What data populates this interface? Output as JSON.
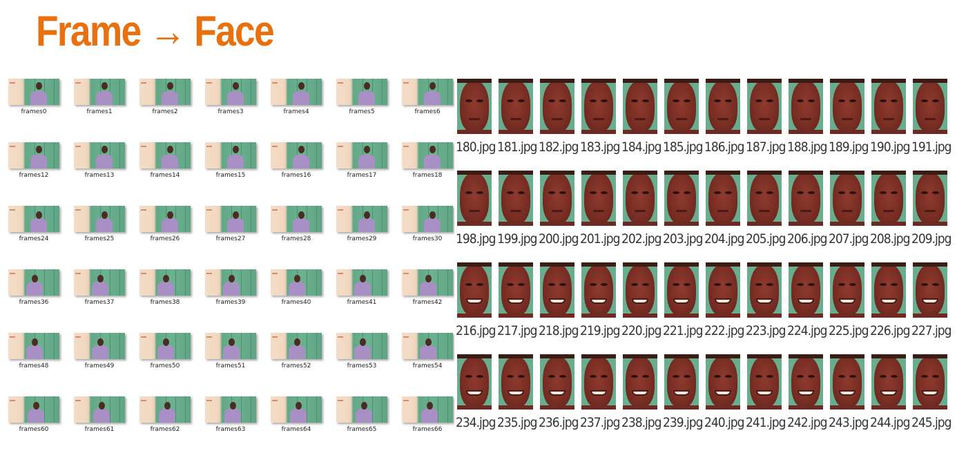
{
  "title": "Frame → Face",
  "colors": {
    "title": "#e8700e"
  },
  "frames": [
    [
      "frames0",
      "frames1",
      "frames2",
      "frames3",
      "frames4",
      "frames5",
      "frames6"
    ],
    [
      "frames12",
      "frames13",
      "frames14",
      "frames15",
      "frames16",
      "frames17",
      "frames18"
    ],
    [
      "frames24",
      "frames25",
      "frames26",
      "frames27",
      "frames28",
      "frames29",
      "frames30"
    ],
    [
      "frames36",
      "frames37",
      "frames38",
      "frames39",
      "frames40",
      "frames41",
      "frames42"
    ],
    [
      "frames48",
      "frames49",
      "frames50",
      "frames51",
      "frames52",
      "frames53",
      "frames54"
    ],
    [
      "frames60",
      "frames61",
      "frames62",
      "frames63",
      "frames64",
      "frames65",
      "frames66"
    ]
  ],
  "faces": [
    [
      "180.jpg",
      "181.jpg",
      "182.jpg",
      "183.jpg",
      "184.jpg",
      "185.jpg",
      "186.jpg",
      "187.jpg",
      "188.jpg",
      "189.jpg",
      "190.jpg",
      "191.jpg"
    ],
    [
      "198.jpg",
      "199.jpg",
      "200.jpg",
      "201.jpg",
      "202.jpg",
      "203.jpg",
      "204.jpg",
      "205.jpg",
      "206.jpg",
      "207.jpg",
      "208.jpg",
      "209.jpg"
    ],
    [
      "216.jpg",
      "217.jpg",
      "218.jpg",
      "219.jpg",
      "220.jpg",
      "221.jpg",
      "222.jpg",
      "223.jpg",
      "224.jpg",
      "225.jpg",
      "226.jpg",
      "227.jpg"
    ],
    [
      "234.jpg",
      "235.jpg",
      "236.jpg",
      "237.jpg",
      "238.jpg",
      "239.jpg",
      "240.jpg",
      "241.jpg",
      "242.jpg",
      "243.jpg",
      "244.jpg",
      "245.jpg"
    ]
  ]
}
